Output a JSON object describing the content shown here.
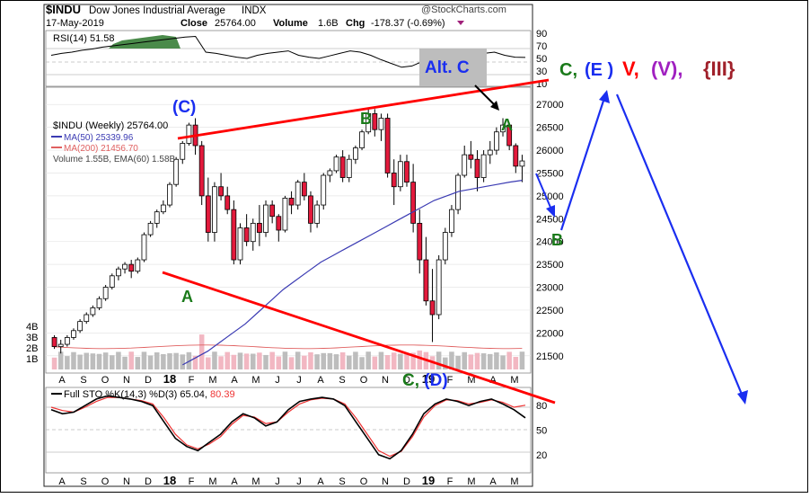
{
  "header": {
    "symbol": "$INDU",
    "name": "Dow Jones Industrial Average",
    "exchange": "INDX",
    "watermark": "@StockCharts.com",
    "date": "17-May-2019",
    "close_label": "Close",
    "close_value": "25764.00",
    "volume_label": "Volume",
    "volume_value": "1.6B",
    "chg_label": "Chg",
    "chg_value": "-178.37 (-0.69%)"
  },
  "rsi": {
    "label": "RSI(14) 51.58",
    "ticks": [
      "90",
      "70",
      "50",
      "30",
      "10"
    ]
  },
  "main_legend": {
    "title": "$INDU (Weekly) 25764.00",
    "ma50": "MA(50) 25339.96",
    "ma200": "MA(200) 21456.70",
    "volume": "Volume 1.55B, EMA(60) 1.58B"
  },
  "price_axis": [
    "27000",
    "26500",
    "26000",
    "25500",
    "25000",
    "24500",
    "24000",
    "23500",
    "23000",
    "22500",
    "22000",
    "21500"
  ],
  "volume_axis": [
    "4B",
    "3B",
    "2B",
    "1B"
  ],
  "month_labels": [
    "A",
    "S",
    "O",
    "N",
    "D",
    "18",
    "F",
    "M",
    "A",
    "M",
    "J",
    "J",
    "A",
    "S",
    "O",
    "N",
    "D",
    "19",
    "F",
    "M",
    "A",
    "M"
  ],
  "sto": {
    "label_prefix": "Full STO %K(14,3) %D(3) 65.04,",
    "label_value": "80.39",
    "ticks": [
      "80",
      "50",
      "20"
    ]
  },
  "annotations": {
    "wave_c_paren": "(C)",
    "alt_c": "Alt. C",
    "a_left": "A",
    "b_top": "B",
    "a_right": "A",
    "b_right": "B",
    "c_d": "C, (D)",
    "c_label": "C,",
    "e_label": "(E )",
    "v_label": "V,",
    "vv_label": "(V),",
    "iii_label": "{III}"
  },
  "colors": {
    "up_candle": "#ffffff",
    "down_candle": "#e31a3c",
    "ma50": "#3b3bb3",
    "ma200": "#e06060",
    "trendline": "#ff0000",
    "wave_green": "#1a7a1a",
    "wave_blue": "#1a2ef0",
    "wave_red": "#ff0000",
    "wave_purple": "#a020c0",
    "wave_darkred": "#a0202a",
    "rsi_fill": "#4a8a4a",
    "sto_k": "#000000",
    "sto_d": "#e33"
  },
  "chart_data": {
    "type": "candlestick",
    "timeframe": "weekly",
    "x_range": [
      "2017-08",
      "2019-05"
    ],
    "ylim": [
      21200,
      27300
    ],
    "price_series": [
      {
        "name": "$INDU",
        "ohlc_weekly": [
          [
            21900,
            21950,
            21650,
            21700
          ],
          [
            21700,
            21850,
            21550,
            21750
          ],
          [
            21750,
            21950,
            21700,
            21900
          ],
          [
            21900,
            22100,
            21850,
            22050
          ],
          [
            22050,
            22300,
            22000,
            22250
          ],
          [
            22250,
            22450,
            22200,
            22400
          ],
          [
            22400,
            22600,
            22350,
            22550
          ],
          [
            22550,
            22800,
            22500,
            22750
          ],
          [
            22750,
            23050,
            22700,
            23000
          ],
          [
            23000,
            23300,
            22950,
            23250
          ],
          [
            23250,
            23450,
            23150,
            23400
          ],
          [
            23400,
            23550,
            23300,
            23500
          ],
          [
            23500,
            23600,
            23200,
            23350
          ],
          [
            23350,
            23650,
            23300,
            23600
          ],
          [
            23600,
            24200,
            23550,
            24150
          ],
          [
            24150,
            24450,
            24100,
            24400
          ],
          [
            24400,
            24700,
            24300,
            24650
          ],
          [
            24650,
            24900,
            24600,
            24800
          ],
          [
            24800,
            25300,
            24750,
            25250
          ],
          [
            25250,
            25850,
            25200,
            25800
          ],
          [
            25800,
            26200,
            25700,
            26150
          ],
          [
            26150,
            26600,
            26100,
            26550
          ],
          [
            26550,
            26700,
            25900,
            26100
          ],
          [
            26100,
            26200,
            24800,
            25000
          ],
          [
            25000,
            25400,
            24000,
            24200
          ],
          [
            24200,
            25300,
            24000,
            25200
          ],
          [
            25200,
            25500,
            24900,
            25000
          ],
          [
            25000,
            25200,
            24600,
            24700
          ],
          [
            24700,
            24900,
            23500,
            23600
          ],
          [
            23600,
            24400,
            23500,
            24300
          ],
          [
            24300,
            24600,
            23900,
            24000
          ],
          [
            24000,
            24500,
            23800,
            24400
          ],
          [
            24400,
            24800,
            23900,
            24200
          ],
          [
            24200,
            24900,
            24100,
            24800
          ],
          [
            24800,
            24900,
            24400,
            24550
          ],
          [
            24550,
            24600,
            24000,
            24250
          ],
          [
            24250,
            25000,
            24200,
            24950
          ],
          [
            24950,
            25100,
            24600,
            24800
          ],
          [
            24800,
            25350,
            24700,
            25300
          ],
          [
            25300,
            25500,
            24900,
            25000
          ],
          [
            25000,
            25100,
            24200,
            24400
          ],
          [
            24400,
            24900,
            24300,
            24800
          ],
          [
            24800,
            25500,
            24700,
            25450
          ],
          [
            25450,
            25600,
            25300,
            25550
          ],
          [
            25550,
            25900,
            25500,
            25850
          ],
          [
            25850,
            26000,
            25300,
            25400
          ],
          [
            25400,
            25900,
            25300,
            25800
          ],
          [
            25800,
            26100,
            25700,
            26050
          ],
          [
            26050,
            26450,
            26000,
            26400
          ],
          [
            26400,
            26900,
            26350,
            26800
          ],
          [
            26800,
            26900,
            26300,
            26450
          ],
          [
            26450,
            26800,
            26200,
            26700
          ],
          [
            26700,
            26800,
            25400,
            25500
          ],
          [
            25500,
            25800,
            24800,
            25200
          ],
          [
            25200,
            25900,
            25100,
            25750
          ],
          [
            25750,
            25900,
            25200,
            25300
          ],
          [
            25300,
            25700,
            24200,
            24400
          ],
          [
            24400,
            24700,
            23300,
            23600
          ],
          [
            23600,
            24100,
            22600,
            22700
          ],
          [
            22700,
            23400,
            21800,
            22400
          ],
          [
            22400,
            23700,
            22300,
            23600
          ],
          [
            23600,
            24300,
            23500,
            24200
          ],
          [
            24200,
            24800,
            24100,
            24700
          ],
          [
            24700,
            25500,
            24600,
            25450
          ],
          [
            25450,
            26100,
            25400,
            25900
          ],
          [
            25900,
            26200,
            25600,
            25800
          ],
          [
            25800,
            26000,
            25100,
            25400
          ],
          [
            25400,
            26000,
            25300,
            25900
          ],
          [
            25900,
            26200,
            25700,
            26000
          ],
          [
            26000,
            26500,
            25900,
            26400
          ],
          [
            26400,
            26700,
            26300,
            26550
          ],
          [
            26550,
            26600,
            26000,
            26100
          ],
          [
            26100,
            26150,
            25500,
            25650
          ],
          [
            25650,
            25900,
            25300,
            25764
          ]
        ]
      }
    ],
    "moving_averages": [
      {
        "name": "MA(50)",
        "values": [
          21300,
          21450,
          21600,
          21800,
          22000,
          22200,
          22450,
          22700,
          22950,
          23150,
          23350,
          23550,
          23700,
          23850,
          24000,
          24150,
          24300,
          24450,
          24600,
          24750,
          24900,
          25000,
          25100,
          25150,
          25200,
          25250,
          25300,
          25339.96
        ]
      },
      {
        "name": "MA(200)",
        "latest": 21456.7
      }
    ],
    "volume_series": {
      "name": "Volume",
      "unit": "B",
      "latest": 1.55,
      "ema60": 1.58,
      "ylim": [
        0,
        4.5
      ]
    },
    "rsi": {
      "period": 14,
      "latest": 51.58,
      "ylim": [
        10,
        90
      ],
      "values": [
        55,
        58,
        60,
        63,
        65,
        68,
        70,
        72,
        74,
        76,
        78,
        80,
        82,
        84,
        85,
        60,
        58,
        55,
        52,
        50,
        55,
        58,
        60,
        62,
        55,
        52,
        50,
        54,
        58,
        62,
        60,
        55,
        48,
        42,
        36,
        38,
        45,
        52,
        58,
        62,
        60,
        55,
        58,
        60,
        55,
        52,
        51.58
      ]
    },
    "stochastic": {
      "k_period": 14,
      "smooth": 3,
      "d_period": 3,
      "k_latest": 65.04,
      "d_latest": 80.39,
      "ylim": [
        0,
        100
      ],
      "k_values": [
        75,
        70,
        72,
        80,
        88,
        92,
        90,
        88,
        85,
        80,
        60,
        40,
        30,
        25,
        35,
        45,
        60,
        70,
        65,
        55,
        60,
        75,
        85,
        88,
        90,
        88,
        80,
        60,
        40,
        20,
        15,
        25,
        45,
        70,
        82,
        88,
        85,
        80,
        85,
        88,
        82,
        75,
        65.04
      ],
      "d_values": [
        78,
        74,
        72,
        78,
        85,
        90,
        90,
        88,
        86,
        82,
        65,
        45,
        32,
        27,
        33,
        42,
        57,
        68,
        66,
        58,
        60,
        72,
        82,
        87,
        89,
        88,
        82,
        65,
        45,
        25,
        18,
        24,
        42,
        66,
        80,
        87,
        86,
        82,
        84,
        87,
        84,
        78,
        80.39
      ]
    }
  }
}
